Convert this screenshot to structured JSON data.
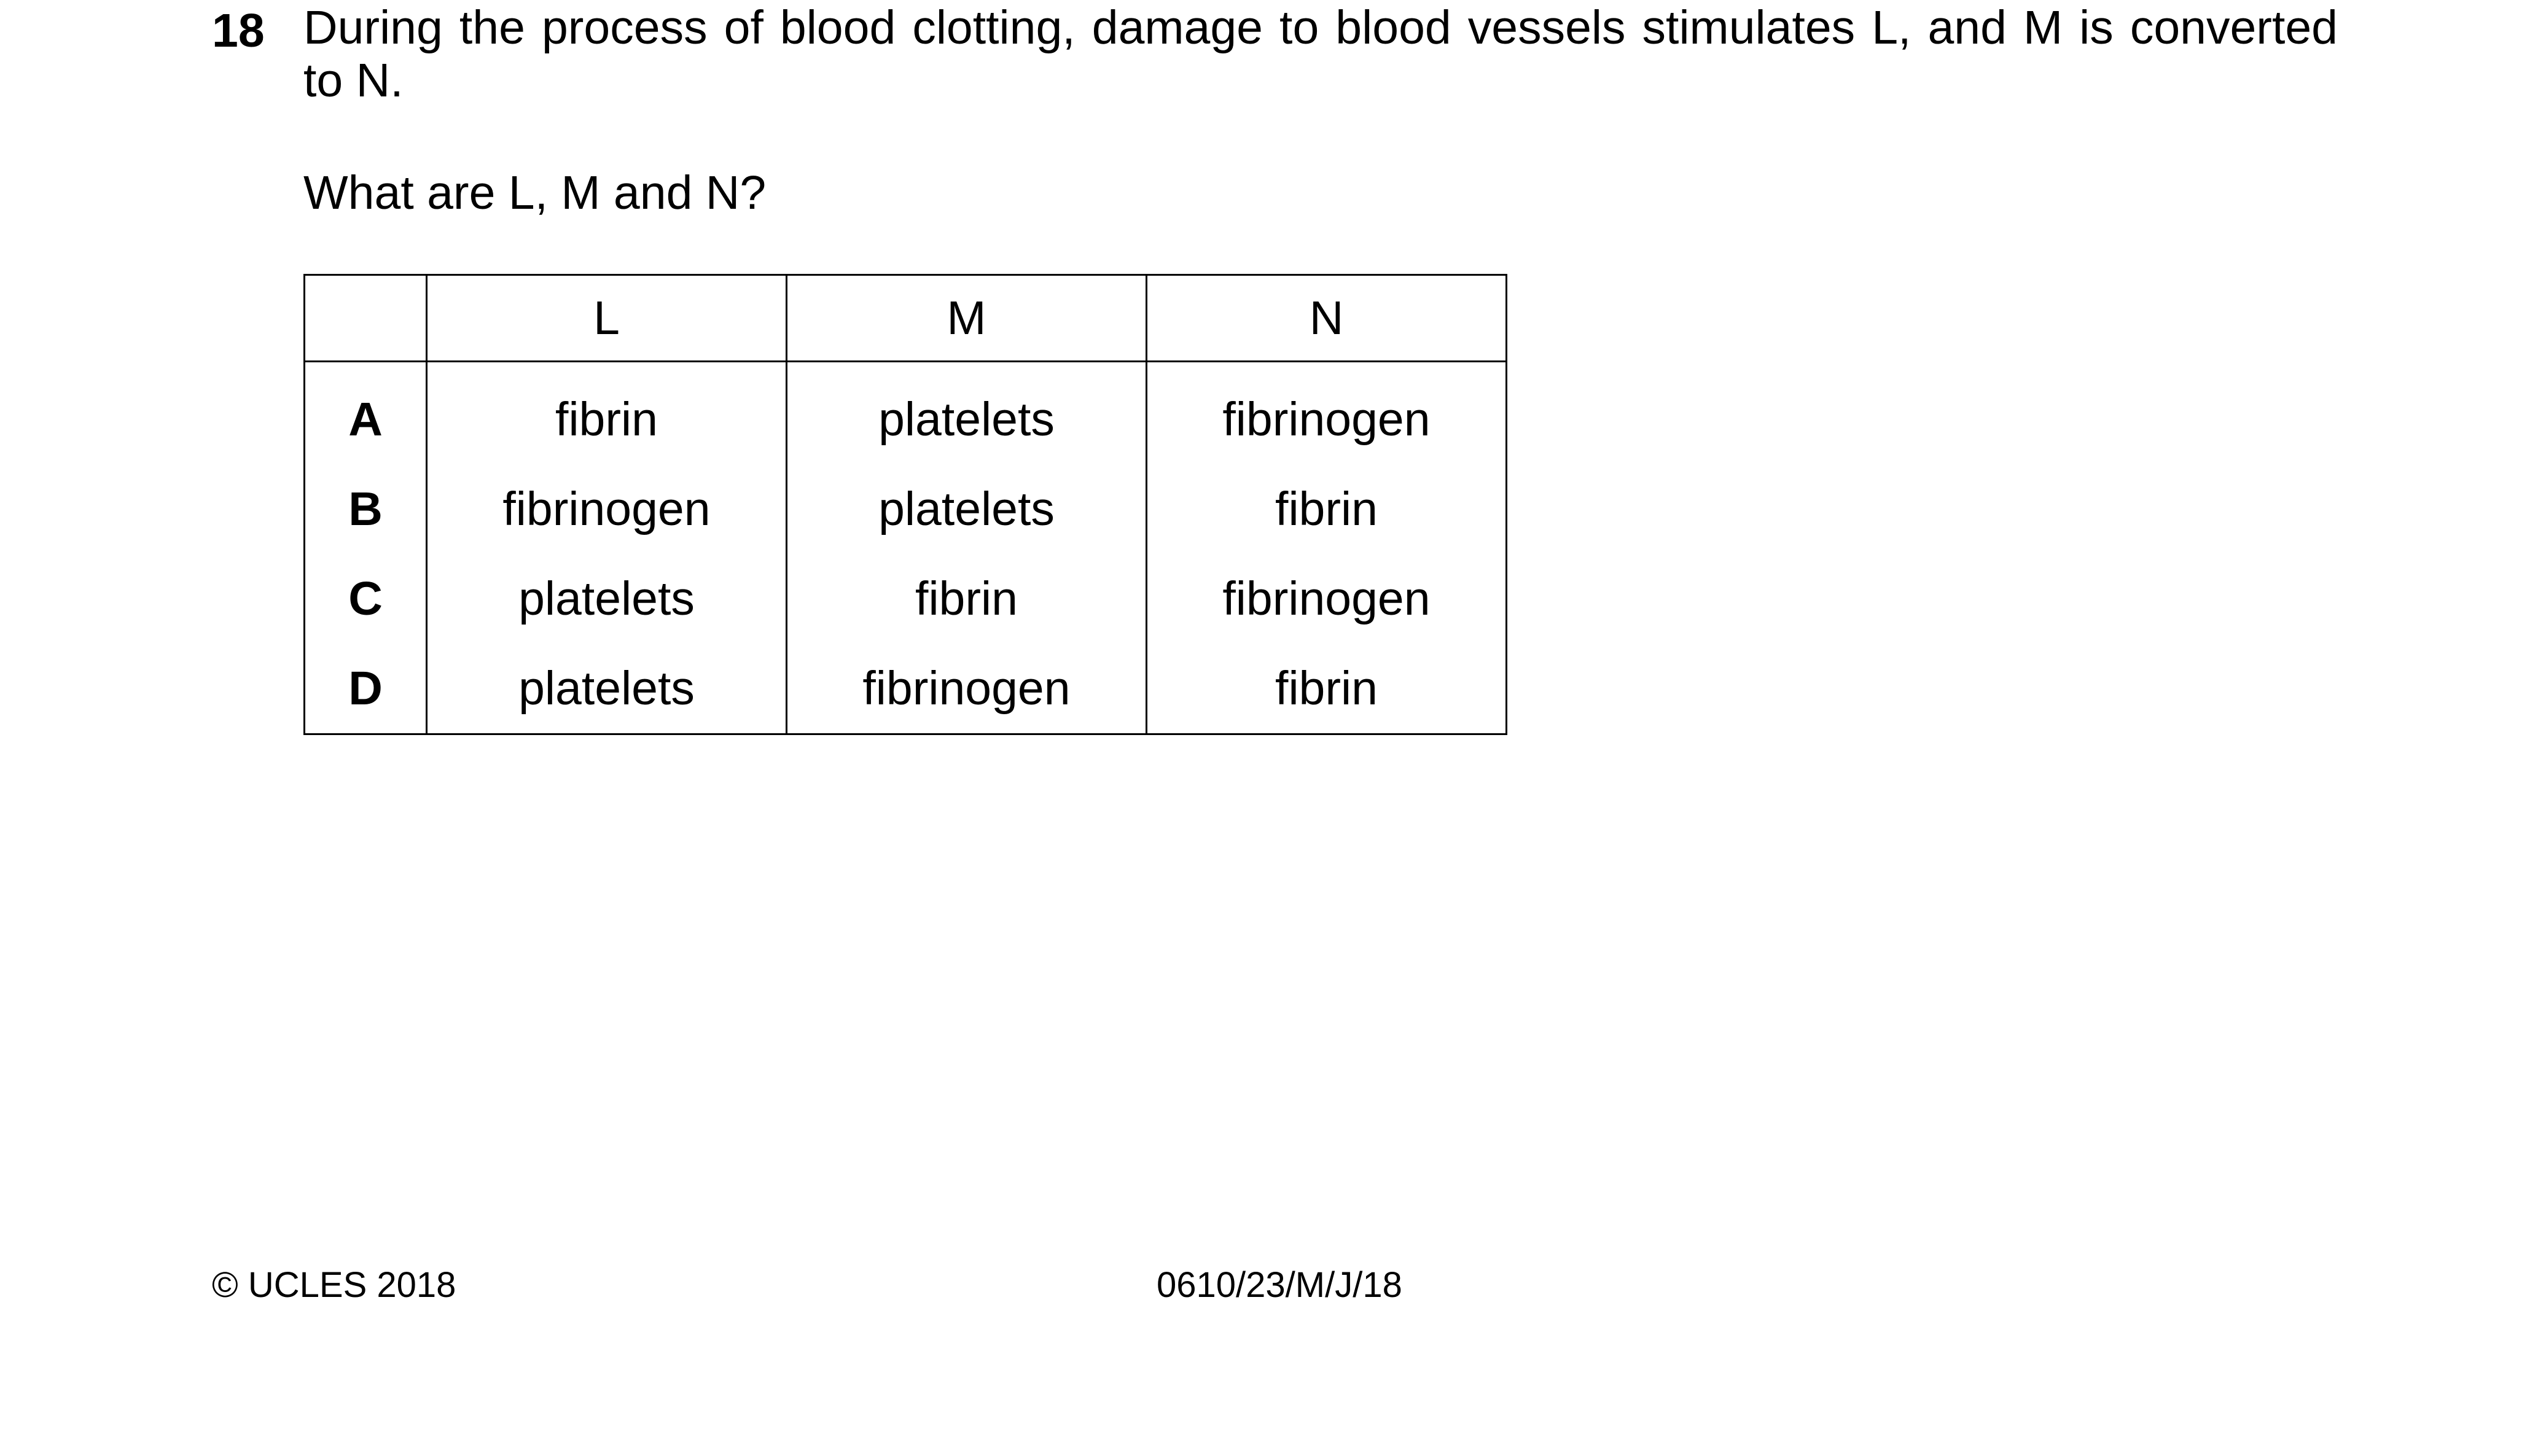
{
  "question": {
    "number": "18",
    "stem": "During the process of blood clotting, damage to blood vessels stimulates L, and M is converted to N.",
    "ask": "What are L, M and N?"
  },
  "table": {
    "headers": [
      "",
      "L",
      "M",
      "N"
    ],
    "rows": [
      {
        "key": "A",
        "cells": [
          "fibrin",
          "platelets",
          "fibrinogen"
        ]
      },
      {
        "key": "B",
        "cells": [
          "fibrinogen",
          "platelets",
          "fibrin"
        ]
      },
      {
        "key": "C",
        "cells": [
          "platelets",
          "fibrin",
          "fibrinogen"
        ]
      },
      {
        "key": "D",
        "cells": [
          "platelets",
          "fibrinogen",
          "fibrin"
        ]
      }
    ]
  },
  "footer": {
    "copyright": "© UCLES 2018",
    "paper_code": "0610/23/M/J/18"
  }
}
